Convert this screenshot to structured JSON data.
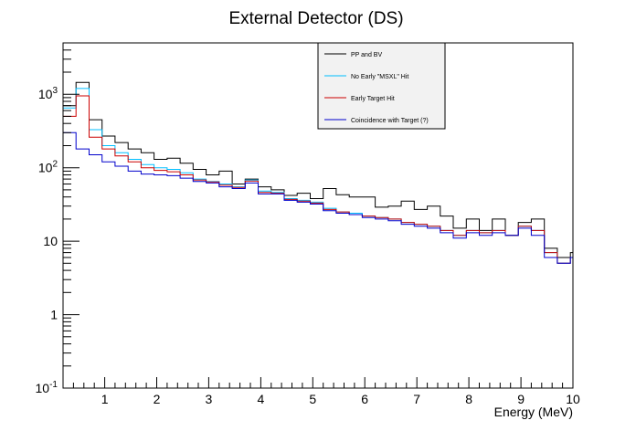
{
  "chart_data": {
    "type": "line",
    "title": "External Detector (DS)",
    "xlabel": "Energy (MeV)",
    "ylabel": "",
    "xlim": [
      0.2,
      10
    ],
    "ylim": [
      0.1,
      5000
    ],
    "y_scale": "log",
    "grid": false,
    "legend_position": "top-center",
    "x_ticks": [
      "1",
      "2",
      "3",
      "4",
      "5",
      "6",
      "7",
      "8",
      "9",
      "10"
    ],
    "y_ticks": [
      {
        "base": "10",
        "exp": "-1"
      },
      {
        "base": "1",
        "exp": ""
      },
      {
        "base": "10",
        "exp": ""
      },
      {
        "base": "10",
        "exp": "2"
      },
      {
        "base": "10",
        "exp": "3"
      }
    ],
    "bin_edges": [
      0.2,
      0.45,
      0.7,
      0.95,
      1.2,
      1.45,
      1.7,
      1.95,
      2.2,
      2.45,
      2.7,
      2.95,
      3.2,
      3.45,
      3.7,
      3.95,
      4.2,
      4.45,
      4.7,
      4.95,
      5.2,
      5.45,
      5.7,
      5.95,
      6.2,
      6.45,
      6.7,
      6.95,
      7.2,
      7.45,
      7.7,
      7.95,
      8.2,
      8.45,
      8.7,
      8.95,
      9.2,
      9.45,
      9.7,
      9.95,
      10.0
    ],
    "series": [
      {
        "name": "PP and BV",
        "color": "#000000",
        "values": [
          700,
          1450,
          450,
          270,
          220,
          180,
          160,
          130,
          135,
          115,
          95,
          80,
          90,
          60,
          70,
          55,
          50,
          42,
          45,
          38,
          52,
          43,
          40,
          40,
          29,
          30,
          35,
          27,
          30,
          22,
          15,
          20,
          14,
          20,
          12,
          18,
          20,
          8,
          6,
          7,
          5
        ]
      },
      {
        "name": "No Early \"MSXL\" Hit",
        "color": "#00bfff",
        "values": [
          650,
          1200,
          330,
          200,
          160,
          130,
          110,
          100,
          95,
          85,
          70,
          65,
          60,
          55,
          68,
          48,
          46,
          38,
          36,
          34,
          28,
          25,
          24,
          22,
          21,
          20,
          18,
          17,
          16,
          14,
          12,
          14,
          13,
          14,
          12,
          16,
          14,
          7,
          5,
          6,
          5
        ]
      },
      {
        "name": "Early Target Hit",
        "color": "#cc0000",
        "values": [
          500,
          950,
          260,
          180,
          145,
          120,
          100,
          92,
          88,
          80,
          68,
          64,
          58,
          54,
          66,
          46,
          45,
          37,
          35,
          33,
          27,
          25,
          23,
          22,
          21,
          20,
          18,
          17,
          16,
          14,
          12,
          14,
          13,
          14,
          12,
          16,
          14,
          7,
          5,
          6,
          5
        ]
      },
      {
        "name": "Coincidence with Target (?)",
        "color": "#0000cc",
        "values": [
          300,
          180,
          150,
          120,
          105,
          90,
          82,
          80,
          78,
          72,
          65,
          62,
          55,
          52,
          62,
          44,
          44,
          36,
          34,
          32,
          26,
          24,
          23,
          21,
          20,
          19,
          17,
          16,
          15,
          13,
          11,
          13,
          12,
          13,
          12,
          15,
          12,
          6,
          5,
          6,
          5
        ]
      }
    ]
  }
}
